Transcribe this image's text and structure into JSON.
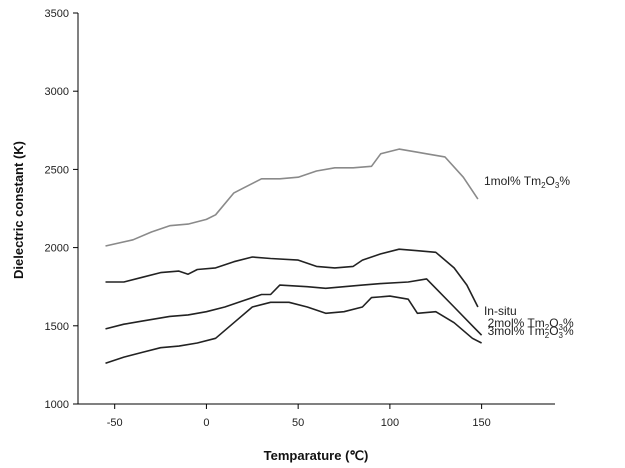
{
  "chart_data": {
    "type": "line",
    "title": "",
    "xlabel": "Temparature (℃)",
    "ylabel": "Dielectric constant (K)",
    "xlim": [
      -70,
      190
    ],
    "ylim": [
      1000,
      3500
    ],
    "xticks": [
      -50,
      0,
      50,
      100,
      150
    ],
    "yticks": [
      1000,
      1500,
      2000,
      2500,
      3000,
      3500
    ],
    "grid": false,
    "series": [
      {
        "name_parts": [
          "1mol% Tm",
          "2",
          "O",
          "3",
          "%"
        ],
        "color": "#8a8a8a",
        "x": [
          -55,
          -40,
          -30,
          -20,
          -10,
          0,
          5,
          15,
          20,
          30,
          40,
          50,
          60,
          70,
          80,
          90,
          95,
          105,
          115,
          120,
          130,
          140,
          148
        ],
        "y": [
          2010,
          2050,
          2100,
          2140,
          2150,
          2180,
          2210,
          2350,
          2380,
          2440,
          2440,
          2450,
          2490,
          2510,
          2510,
          2520,
          2600,
          2630,
          2610,
          2600,
          2580,
          2450,
          2310
        ]
      },
      {
        "name_parts": [
          "In-situ"
        ],
        "color": "#222222",
        "x": [
          -55,
          -45,
          -35,
          -25,
          -15,
          -10,
          -5,
          5,
          15,
          25,
          35,
          50,
          60,
          70,
          80,
          85,
          95,
          105,
          115,
          125,
          135,
          142,
          148
        ],
        "y": [
          1780,
          1780,
          1810,
          1840,
          1850,
          1830,
          1860,
          1870,
          1910,
          1940,
          1930,
          1920,
          1880,
          1870,
          1880,
          1920,
          1960,
          1990,
          1980,
          1970,
          1870,
          1760,
          1620
        ]
      },
      {
        "name_parts": [
          "2mol% Tm",
          "2",
          "O",
          "3",
          "%"
        ],
        "color": "#222222",
        "x": [
          -55,
          -45,
          -35,
          -20,
          -10,
          0,
          10,
          20,
          30,
          35,
          40,
          55,
          65,
          75,
          85,
          95,
          110,
          120,
          125,
          135,
          145,
          150
        ],
        "y": [
          1480,
          1510,
          1530,
          1560,
          1570,
          1590,
          1620,
          1660,
          1700,
          1700,
          1760,
          1750,
          1740,
          1750,
          1760,
          1770,
          1780,
          1800,
          1740,
          1620,
          1500,
          1440
        ]
      },
      {
        "name_parts": [
          "3mol% Tm",
          "2",
          "O",
          "3",
          "%"
        ],
        "color": "#222222",
        "x": [
          -55,
          -45,
          -35,
          -25,
          -15,
          -5,
          5,
          15,
          25,
          35,
          45,
          55,
          65,
          75,
          85,
          90,
          100,
          110,
          115,
          125,
          135,
          145,
          150
        ],
        "y": [
          1260,
          1300,
          1330,
          1360,
          1370,
          1390,
          1420,
          1520,
          1620,
          1650,
          1650,
          1620,
          1580,
          1590,
          1620,
          1680,
          1690,
          1670,
          1580,
          1590,
          1520,
          1420,
          1390
        ]
      }
    ]
  }
}
